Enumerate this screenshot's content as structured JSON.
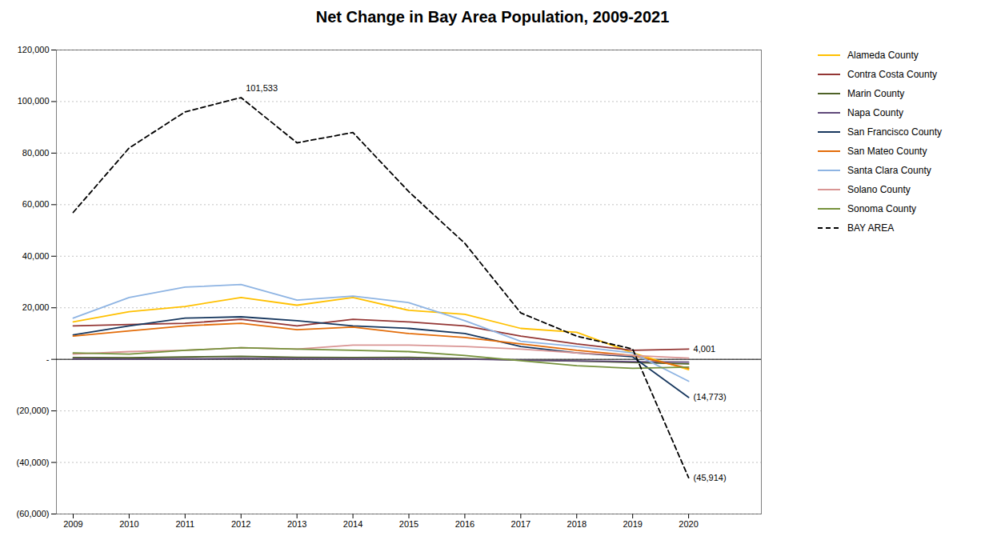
{
  "chart_data": {
    "type": "line",
    "title": "Net Change in Bay Area Population, 2009-2021",
    "x": [
      2009,
      2010,
      2011,
      2012,
      2013,
      2014,
      2015,
      2016,
      2017,
      2018,
      2019,
      2020
    ],
    "series": [
      {
        "name": "Alameda County",
        "color": "#FFC000",
        "line_style": "solid",
        "values": [
          14500,
          18500,
          20500,
          24000,
          21000,
          24000,
          19000,
          17500,
          12000,
          10500,
          2500,
          -4000
        ]
      },
      {
        "name": "Contra Costa County",
        "color": "#943634",
        "line_style": "solid",
        "values": [
          13000,
          13500,
          14000,
          15500,
          13000,
          15500,
          14500,
          13000,
          9000,
          6000,
          3500,
          4001
        ]
      },
      {
        "name": "Marin County",
        "color": "#4F6228",
        "line_style": "solid",
        "values": [
          700,
          600,
          900,
          1200,
          800,
          700,
          800,
          300,
          -300,
          -700,
          -1200,
          -1800
        ]
      },
      {
        "name": "Napa County",
        "color": "#60497A",
        "line_style": "solid",
        "values": [
          200,
          100,
          200,
          400,
          300,
          200,
          300,
          100,
          -300,
          -600,
          -900,
          -1100
        ]
      },
      {
        "name": "San Francisco County",
        "color": "#17375E",
        "line_style": "solid",
        "values": [
          9500,
          13000,
          16000,
          16500,
          15000,
          13000,
          12000,
          10000,
          5000,
          2500,
          1000,
          -14773
        ]
      },
      {
        "name": "San Mateo County",
        "color": "#E36C09",
        "line_style": "solid",
        "values": [
          9000,
          11000,
          13000,
          14000,
          11500,
          12500,
          10000,
          8500,
          6000,
          3500,
          1500,
          -3500
        ]
      },
      {
        "name": "Santa Clara County",
        "color": "#8EB4E3",
        "line_style": "solid",
        "values": [
          16000,
          24000,
          28000,
          29000,
          23000,
          24500,
          22000,
          15000,
          7000,
          5000,
          2500,
          -8500
        ]
      },
      {
        "name": "Solano County",
        "color": "#D99594",
        "line_style": "solid",
        "values": [
          2000,
          3000,
          3500,
          4500,
          4000,
          5500,
          5500,
          5000,
          4000,
          2500,
          1500,
          500
        ]
      },
      {
        "name": "Sonoma County",
        "color": "#76923C",
        "line_style": "solid",
        "values": [
          2500,
          2000,
          3500,
          4500,
          4000,
          3500,
          3000,
          1500,
          -500,
          -2500,
          -3500,
          -3000
        ]
      },
      {
        "name": "BAY AREA",
        "color": "#000000",
        "line_style": "dashed",
        "values": [
          57000,
          82000,
          96000,
          101533,
          84000,
          88000,
          65000,
          45000,
          18000,
          9000,
          4000,
          -45914
        ]
      }
    ],
    "annotations": [
      {
        "text": "101,533",
        "x": 2012,
        "y": 101533
      },
      {
        "text": "4,001",
        "x": 2020,
        "y": 4001
      },
      {
        "text": "(14,773)",
        "x": 2020,
        "y": -14773
      },
      {
        "text": "(45,914)",
        "x": 2020,
        "y": -45914
      }
    ],
    "xlim": [
      2008.7,
      2021.3
    ],
    "xticks": [
      2009,
      2010,
      2011,
      2012,
      2013,
      2014,
      2015,
      2016,
      2017,
      2018,
      2019,
      2020
    ],
    "ylim": [
      -60000,
      120000
    ],
    "yticks": [
      {
        "value": -60000,
        "label": "(60,000)"
      },
      {
        "value": -40000,
        "label": "(40,000)"
      },
      {
        "value": -20000,
        "label": "(20,000)"
      },
      {
        "value": 0,
        "label": "-"
      },
      {
        "value": 20000,
        "label": "20,000"
      },
      {
        "value": 40000,
        "label": "40,000"
      },
      {
        "value": 60000,
        "label": "60,000"
      },
      {
        "value": 80000,
        "label": "80,000"
      },
      {
        "value": 100000,
        "label": "100,000"
      },
      {
        "value": 120000,
        "label": "120,000"
      }
    ],
    "grid": true,
    "legend": "right"
  }
}
